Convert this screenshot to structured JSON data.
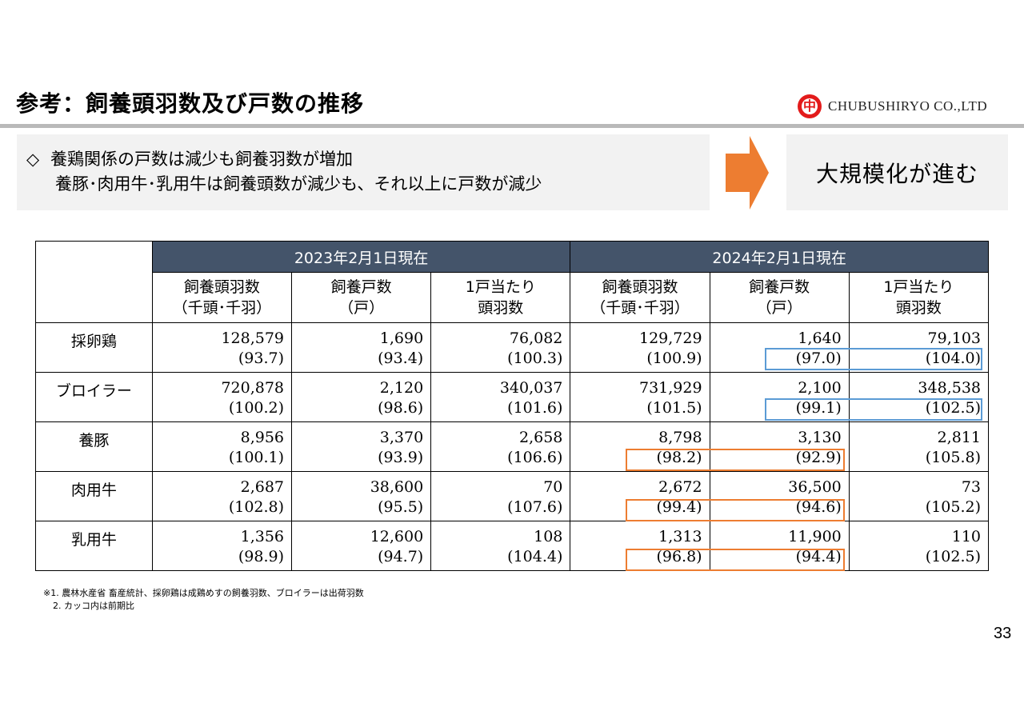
{
  "title": "参考：飼養頭羽数及び戸数の推移",
  "company": "CHUBUSHIRYO CO.,LTD",
  "logo_char": "中",
  "callout": {
    "bullet": "◇",
    "line1": "養鶏関係の戸数は減少も飼養羽数が増加",
    "line2": "養豚･肉用牛･乳用牛は飼養頭数が減少も、それ以上に戸数が減少"
  },
  "result": "大規模化が進む",
  "colors": {
    "header_bg": "#44546a",
    "callout_bg": "#f2f2f2",
    "arrow": "#ed7d31",
    "blue_box": "#5b9bd5",
    "orange_box": "#ed7d31",
    "logo_red": "#e31b1b"
  },
  "table": {
    "periods": [
      "2023年2月1日現在",
      "2024年2月1日現在"
    ],
    "subheaders": [
      [
        "飼養頭羽数",
        "（千頭･千羽）"
      ],
      [
        "飼養戸数",
        "（戸）"
      ],
      [
        "1戸当たり",
        "頭羽数"
      ],
      [
        "飼養頭羽数",
        "（千頭･千羽）"
      ],
      [
        "飼養戸数",
        "（戸）"
      ],
      [
        "1戸当たり",
        "頭羽数"
      ]
    ],
    "rows": [
      {
        "label": "採卵鶏",
        "values": [
          "128,579",
          "1,690",
          "76,082",
          "129,729",
          "1,640",
          "79,103"
        ],
        "ratios": [
          "(93.7)",
          "(93.4)",
          "(100.3)",
          "(100.9)",
          "(97.0)",
          "(104.0)"
        ]
      },
      {
        "label": "ブロイラー",
        "values": [
          "720,878",
          "2,120",
          "340,037",
          "731,929",
          "2,100",
          "348,538"
        ],
        "ratios": [
          "(100.2)",
          "(98.6)",
          "(101.6)",
          "(101.5)",
          "(99.1)",
          "(102.5)"
        ]
      },
      {
        "label": "養豚",
        "values": [
          "8,956",
          "3,370",
          "2,658",
          "8,798",
          "3,130",
          "2,811"
        ],
        "ratios": [
          "(100.1)",
          "(93.9)",
          "(106.6)",
          "(98.2)",
          "(92.9)",
          "(105.8)"
        ]
      },
      {
        "label": "肉用牛",
        "values": [
          "2,687",
          "38,600",
          "70",
          "2,672",
          "36,500",
          "73"
        ],
        "ratios": [
          "(102.8)",
          "(95.5)",
          "(107.6)",
          "(99.4)",
          "(94.6)",
          "(105.2)"
        ]
      },
      {
        "label": "乳用牛",
        "values": [
          "1,356",
          "12,600",
          "108",
          "1,313",
          "11,900",
          "110"
        ],
        "ratios": [
          "(98.9)",
          "(94.7)",
          "(104.4)",
          "(96.8)",
          "(94.4)",
          "(102.5)"
        ]
      }
    ]
  },
  "notes": [
    "※1. 農林水産省 畜産統計、採卵鶏は成鶏めすの飼養羽数、ブロイラーは出荷羽数",
    "2. カッコ内は前期比"
  ],
  "page_number": "33"
}
